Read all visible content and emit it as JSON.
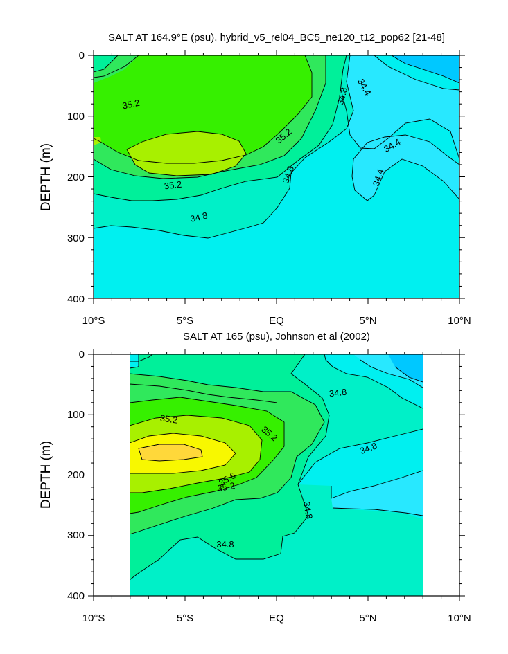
{
  "chart_data": [
    {
      "type": "contour",
      "title": "SALT AT 164.9°E (psu), hybrid_v5_rel04_BC5_ne120_t12_pop62 [21-48]",
      "ylabel": "DEPTH (m)",
      "xlabel": "",
      "x_ticks": [
        "10°S",
        "5°S",
        "EQ",
        "5°N",
        "10°N"
      ],
      "y_ticks": [
        "0",
        "100",
        "200",
        "300",
        "400"
      ],
      "xlim": [
        -10,
        10
      ],
      "ylim": [
        400,
        0
      ],
      "contour_interval": 0.2,
      "contour_labels": [
        "35.2",
        "35.2",
        "35.2",
        "34.8",
        "34.8",
        "34.8",
        "34.4",
        "34.4",
        "34.4"
      ],
      "salinity_range": [
        34.2,
        35.4
      ]
    },
    {
      "type": "contour",
      "title": "SALT AT 165 (psu), Johnson et al (2002)",
      "ylabel": "DEPTH (m)",
      "xlabel": "",
      "x_ticks": [
        "10°S",
        "5°S",
        "EQ",
        "5°N",
        "10°N"
      ],
      "y_ticks": [
        "0",
        "100",
        "200",
        "300",
        "400"
      ],
      "xlim": [
        -10,
        10
      ],
      "ylim": [
        400,
        0
      ],
      "data_xrange": [
        -8,
        8
      ],
      "contour_interval": 0.2,
      "contour_labels": [
        "35.2",
        "35.2",
        "35.6",
        "35.2",
        "34.8",
        "34.8",
        "34.8",
        "34.8"
      ],
      "salinity_range": [
        34.2,
        35.8
      ]
    }
  ],
  "colors": {
    "lvl_342": "#00c8ff",
    "lvl_344": "#28e8ff",
    "lvl_346": "#00f0f0",
    "lvl_348": "#00f0c8",
    "lvl_350": "#00f09a",
    "lvl_352": "#30e85c",
    "lvl_354": "#36f000",
    "lvl_356": "#a8f000",
    "lvl_358": "#f8f800",
    "lvl_360": "#ffd83a"
  }
}
